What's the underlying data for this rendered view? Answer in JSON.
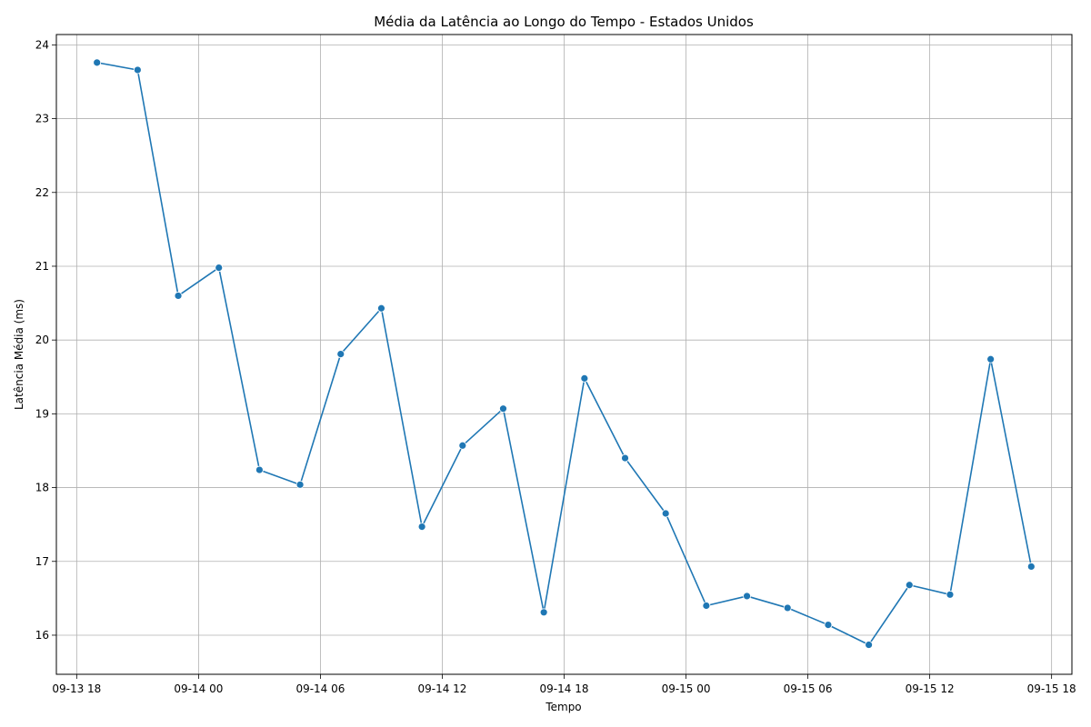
{
  "chart_data": {
    "type": "line",
    "title": "Média da Latência ao Longo do Tempo - Estados Unidos",
    "xlabel": "Tempo",
    "ylabel": "Latência Média (ms)",
    "x_ticks": [
      {
        "t": "2024-09-13T18:00",
        "label": "09-13 18"
      },
      {
        "t": "2024-09-14T00:00",
        "label": "09-14 00"
      },
      {
        "t": "2024-09-14T06:00",
        "label": "09-14 06"
      },
      {
        "t": "2024-09-14T12:00",
        "label": "09-14 12"
      },
      {
        "t": "2024-09-14T18:00",
        "label": "09-14 18"
      },
      {
        "t": "2024-09-15T00:00",
        "label": "09-15 00"
      },
      {
        "t": "2024-09-15T06:00",
        "label": "09-15 06"
      },
      {
        "t": "2024-09-15T12:00",
        "label": "09-15 12"
      },
      {
        "t": "2024-09-15T18:00",
        "label": "09-15 18"
      }
    ],
    "y_ticks": [
      16,
      17,
      18,
      19,
      20,
      21,
      22,
      23,
      24
    ],
    "xlim": [
      "2024-09-13T17:00",
      "2024-09-15T19:00"
    ],
    "ylim": [
      15.47,
      24.14
    ],
    "grid": true,
    "color": "#1f77b4",
    "points": [
      {
        "x": "2024-09-13T19:00",
        "y": 23.76
      },
      {
        "x": "2024-09-13T21:00",
        "y": 23.66
      },
      {
        "x": "2024-09-13T23:00",
        "y": 20.6
      },
      {
        "x": "2024-09-14T01:00",
        "y": 20.98
      },
      {
        "x": "2024-09-14T03:00",
        "y": 18.24
      },
      {
        "x": "2024-09-14T05:00",
        "y": 18.04
      },
      {
        "x": "2024-09-14T07:00",
        "y": 19.81
      },
      {
        "x": "2024-09-14T09:00",
        "y": 20.43
      },
      {
        "x": "2024-09-14T11:00",
        "y": 17.47
      },
      {
        "x": "2024-09-14T13:00",
        "y": 18.57
      },
      {
        "x": "2024-09-14T15:00",
        "y": 19.07
      },
      {
        "x": "2024-09-14T17:00",
        "y": 16.31
      },
      {
        "x": "2024-09-14T19:00",
        "y": 19.48
      },
      {
        "x": "2024-09-14T21:00",
        "y": 18.4
      },
      {
        "x": "2024-09-14T23:00",
        "y": 17.65
      },
      {
        "x": "2024-09-15T01:00",
        "y": 16.4
      },
      {
        "x": "2024-09-15T03:00",
        "y": 16.53
      },
      {
        "x": "2024-09-15T05:00",
        "y": 16.37
      },
      {
        "x": "2024-09-15T07:00",
        "y": 16.14
      },
      {
        "x": "2024-09-15T09:00",
        "y": 15.87
      },
      {
        "x": "2024-09-15T11:00",
        "y": 16.68
      },
      {
        "x": "2024-09-15T13:00",
        "y": 16.55
      },
      {
        "x": "2024-09-15T15:00",
        "y": 19.74
      },
      {
        "x": "2024-09-15T17:00",
        "y": 16.93
      }
    ]
  }
}
